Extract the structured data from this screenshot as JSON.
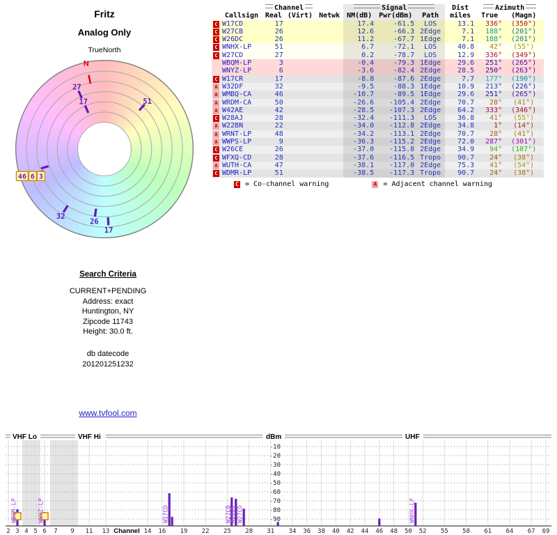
{
  "report": {
    "title": "Fritz",
    "subtitle": "Analog Only",
    "orientation": "TrueNorth"
  },
  "colors": {
    "link": "#2222cc",
    "data_text": "#2233bb",
    "bar": "#6a1fb5",
    "bar_label": "#9a4fd6",
    "radar_mark": "#5a1fb3",
    "north": "#e00000",
    "co_box_bg": "#cc0000",
    "co_box_fg": "#ffffff",
    "adj_box_bg": "#f7a6a6",
    "adj_box_fg": "#991111",
    "row_yellow": "#ffffc8",
    "row_pale": "#fffff2",
    "row_pink": "#ffd8d8",
    "row_gray_a": "#e4e4e4",
    "row_gray_b": "#efefef",
    "highlight_box_fill": "#fff7c0",
    "highlight_box_stroke": "#e08000",
    "signal_band": "rgba(110,110,110,0.16)"
  },
  "radar": {
    "north": {
      "label": "N",
      "angle": 348,
      "tick_r": 0.8,
      "label_r": 0.985
    },
    "spokes": [
      {
        "label": "27",
        "angle": 336,
        "tick_r": 0.67,
        "label_r": 0.76
      },
      {
        "label": "17",
        "angle": 336,
        "tick_r": 0.49,
        "label_r": 0.58
      },
      {
        "label": "51",
        "angle": 42,
        "tick_r": 0.63,
        "label_r": 0.72
      },
      {
        "label": "32",
        "angle": 213,
        "tick_r": 0.8,
        "label_r": 0.9
      },
      {
        "label": "26",
        "angle": 188,
        "tick_r": 0.72,
        "label_r": 0.82
      },
      {
        "label": "17",
        "angle": 177,
        "tick_r": 0.81,
        "label_r": 0.91
      },
      {
        "label": "",
        "angle": 250,
        "tick_r": 0.77
      },
      {
        "label": "",
        "angle": 253,
        "tick_r": 0.7
      }
    ],
    "cluster": {
      "angle": 251,
      "r": 0.93,
      "labels": [
        "46",
        "6",
        "3"
      ]
    }
  },
  "table": {
    "group_headers": {
      "channel": "Channel",
      "signal": "Signal",
      "dist": "Dist",
      "azimuth": "Azimuth"
    },
    "col_headers": [
      "Callsign",
      "Real",
      "(Virt)",
      "Netwk",
      "NM(dB)",
      "Pwr(dBm)",
      "Path",
      "miles",
      "True",
      "(Magn)"
    ],
    "rows": [
      {
        "warn": "C",
        "callsign": "W17CD",
        "real": 17,
        "nm": 17.4,
        "pwr": -61.5,
        "path": "LOS",
        "miles": 13.1,
        "az_true": 336,
        "az_magn": 350,
        "band": "yellow"
      },
      {
        "warn": "C",
        "callsign": "W27CB",
        "real": 26,
        "nm": 12.6,
        "pwr": -66.3,
        "path": "2Edge",
        "miles": 7.1,
        "az_true": 188,
        "az_magn": 201,
        "band": "yellow"
      },
      {
        "warn": "C",
        "callsign": "W26DC",
        "real": 26,
        "nm": 11.2,
        "pwr": -67.7,
        "path": "1Edge",
        "miles": 7.1,
        "az_true": 188,
        "az_magn": 201,
        "band": "yellow"
      },
      {
        "warn": "C",
        "callsign": "WNHX-LP",
        "real": 51,
        "nm": 6.7,
        "pwr": -72.1,
        "path": "LOS",
        "miles": 40.8,
        "az_true": 42,
        "az_magn": 55,
        "band": "pale"
      },
      {
        "warn": "C",
        "callsign": "W27CD",
        "real": 27,
        "nm": 0.2,
        "pwr": -78.7,
        "path": "LOS",
        "miles": 12.9,
        "az_true": 336,
        "az_magn": 349,
        "band": "pale"
      },
      {
        "warn": "",
        "callsign": "WBQM-LP",
        "real": 3,
        "nm": -0.4,
        "pwr": -79.3,
        "path": "1Edge",
        "miles": 29.6,
        "az_true": 251,
        "az_magn": 265,
        "band": "pink"
      },
      {
        "warn": "",
        "callsign": "WNYZ-LP",
        "real": 6,
        "nm": -3.6,
        "pwr": -82.4,
        "path": "2Edge",
        "miles": 28.5,
        "az_true": 250,
        "az_magn": 263,
        "band": "pink"
      },
      {
        "warn": "C",
        "callsign": "W17CR",
        "real": 17,
        "nm": -8.8,
        "pwr": -87.6,
        "path": "2Edge",
        "miles": 7.7,
        "az_true": 177,
        "az_magn": 190,
        "band": "gray"
      },
      {
        "warn": "A",
        "callsign": "W32DF",
        "real": 32,
        "nm": -9.5,
        "pwr": -88.3,
        "path": "1Edge",
        "miles": 10.9,
        "az_true": 213,
        "az_magn": 226,
        "band": "gray"
      },
      {
        "warn": "A",
        "callsign": "WMBQ-CA",
        "real": 46,
        "nm": -10.7,
        "pwr": -89.5,
        "path": "1Edge",
        "miles": 29.6,
        "az_true": 251,
        "az_magn": 265,
        "band": "gray"
      },
      {
        "warn": "A",
        "callsign": "WRDM-CA",
        "real": 50,
        "nm": -26.6,
        "pwr": -105.4,
        "path": "2Edge",
        "miles": 70.7,
        "az_true": 28,
        "az_magn": 41,
        "band": "gray"
      },
      {
        "warn": "A",
        "callsign": "W42AE",
        "real": 42,
        "nm": -28.5,
        "pwr": -107.3,
        "path": "2Edge",
        "miles": 64.2,
        "az_true": 333,
        "az_magn": 346,
        "band": "gray"
      },
      {
        "warn": "C",
        "callsign": "W28AJ",
        "real": 28,
        "nm": -32.4,
        "pwr": -111.3,
        "path": "LOS",
        "miles": 36.8,
        "az_true": 41,
        "az_magn": 55,
        "band": "gray"
      },
      {
        "warn": "A",
        "callsign": "W22BN",
        "real": 22,
        "nm": -34.0,
        "pwr": -112.8,
        "path": "2Edge",
        "miles": 34.8,
        "az_true": 1,
        "az_magn": 14,
        "band": "gray"
      },
      {
        "warn": "A",
        "callsign": "WRNT-LP",
        "real": 48,
        "nm": -34.2,
        "pwr": -113.1,
        "path": "2Edge",
        "miles": 70.7,
        "az_true": 28,
        "az_magn": 41,
        "band": "gray"
      },
      {
        "warn": "A",
        "callsign": "WWPS-LP",
        "real": 9,
        "nm": -36.3,
        "pwr": -115.2,
        "path": "2Edge",
        "miles": 72.0,
        "az_true": 287,
        "az_magn": 301,
        "band": "gray"
      },
      {
        "warn": "C",
        "callsign": "W26CE",
        "real": 26,
        "nm": -37.0,
        "pwr": -115.8,
        "path": "2Edge",
        "miles": 34.9,
        "az_true": 94,
        "az_magn": 107,
        "band": "gray"
      },
      {
        "warn": "C",
        "callsign": "WFXQ-CD",
        "real": 28,
        "nm": -37.6,
        "pwr": -116.5,
        "path": "Tropo",
        "miles": 90.7,
        "az_true": 24,
        "az_magn": 38,
        "band": "gray"
      },
      {
        "warn": "A",
        "callsign": "WUTH-CA",
        "real": 47,
        "nm": -38.1,
        "pwr": -117.0,
        "path": "2Edge",
        "miles": 75.3,
        "az_true": 41,
        "az_magn": 54,
        "band": "gray"
      },
      {
        "warn": "C",
        "callsign": "WDMR-LP",
        "real": 51,
        "nm": -38.5,
        "pwr": -117.3,
        "path": "Tropo",
        "miles": 90.7,
        "az_true": 24,
        "az_magn": 38,
        "band": "gray"
      }
    ]
  },
  "legend": {
    "c_symbol": "C",
    "c_text": "= Co-channel warning",
    "a_symbol": "A",
    "a_text": "= Adjacent channel warning"
  },
  "search": {
    "heading": "Search Criteria",
    "lines": [
      "CURRENT+PENDING",
      "Address: exact",
      "Huntington, NY",
      "Zipcode 11743",
      "Height: 30.0 ft."
    ],
    "datecode_label": "db datecode",
    "datecode": "201201251232"
  },
  "link": {
    "text": "www.tvfool.com"
  },
  "chart_data": {
    "type": "bar",
    "band_labels": [
      "VHF Lo",
      "VHF Hi",
      "UHF"
    ],
    "ylabel": "dBm",
    "xlabel": "Channel",
    "ylim": [
      -97,
      -5
    ],
    "yticks": [
      -10,
      -20,
      -30,
      -40,
      -50,
      -60,
      -70,
      -80,
      -90
    ],
    "xticks": [
      2,
      3,
      4,
      5,
      6,
      7,
      9,
      11,
      13,
      14,
      16,
      19,
      22,
      25,
      28,
      31,
      34,
      36,
      38,
      40,
      42,
      44,
      46,
      48,
      50,
      52,
      55,
      58,
      61,
      64,
      67,
      69
    ],
    "bars": [
      {
        "callsign": "WBQM-LP",
        "channel": 3,
        "dbm": -79.3,
        "label": true,
        "boxed": true
      },
      {
        "callsign": "WNYZ-LP",
        "channel": 6,
        "dbm": -82.4,
        "label": true,
        "boxed": true
      },
      {
        "callsign": "W17CD",
        "channel": 17,
        "dbm": -61.5,
        "label": true
      },
      {
        "callsign": "W17CR",
        "channel": 17,
        "dbm": -87.6,
        "label": false,
        "offset": 4
      },
      {
        "callsign": "W27CB",
        "channel": 26,
        "dbm": -66.3,
        "label": true,
        "offset": -4
      },
      {
        "callsign": "W26DC",
        "channel": 26,
        "dbm": -67.7,
        "label": true,
        "offset": 2
      },
      {
        "callsign": "W27CD",
        "channel": 27,
        "dbm": -78.7,
        "label": true,
        "offset": 3
      },
      {
        "callsign": "W32DF",
        "channel": 32,
        "dbm": -88.3,
        "label": false
      },
      {
        "callsign": "WMBQ-CA",
        "channel": 46,
        "dbm": -89.5,
        "label": false
      },
      {
        "callsign": "WNHX-LP",
        "channel": 51,
        "dbm": -72.1,
        "label": true
      }
    ]
  }
}
